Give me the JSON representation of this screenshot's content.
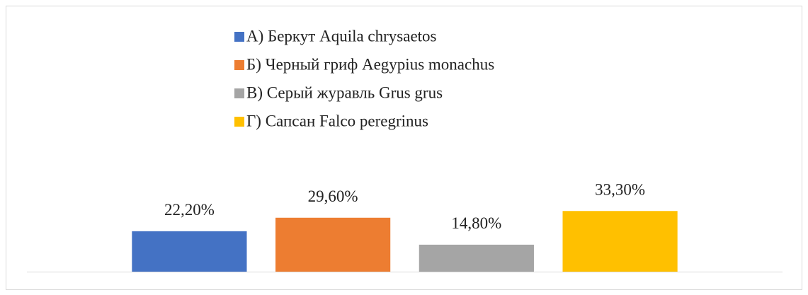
{
  "chart_data": {
    "type": "bar",
    "categories": [
      null
    ],
    "series": [
      {
        "name": "А) Беркут Aquila chrysaetos",
        "color": "#4472c4",
        "values": [
          22.2
        ],
        "value_labels": [
          "22,20%"
        ]
      },
      {
        "name": "Б) Черный гриф Aegypius monachus",
        "color": "#ed7d31",
        "values": [
          29.6
        ],
        "value_labels": [
          "29,60%"
        ]
      },
      {
        "name": "В) Серый журавль Grus grus",
        "color": "#a5a5a5",
        "values": [
          14.8
        ],
        "value_labels": [
          "14,80%"
        ]
      },
      {
        "name": "Г) Сапсан Falco peregrinus",
        "color": "#ffc000",
        "values": [
          33.3
        ],
        "value_labels": [
          "33,30%"
        ]
      }
    ],
    "ylim": [
      0,
      40
    ],
    "legend": "top"
  }
}
